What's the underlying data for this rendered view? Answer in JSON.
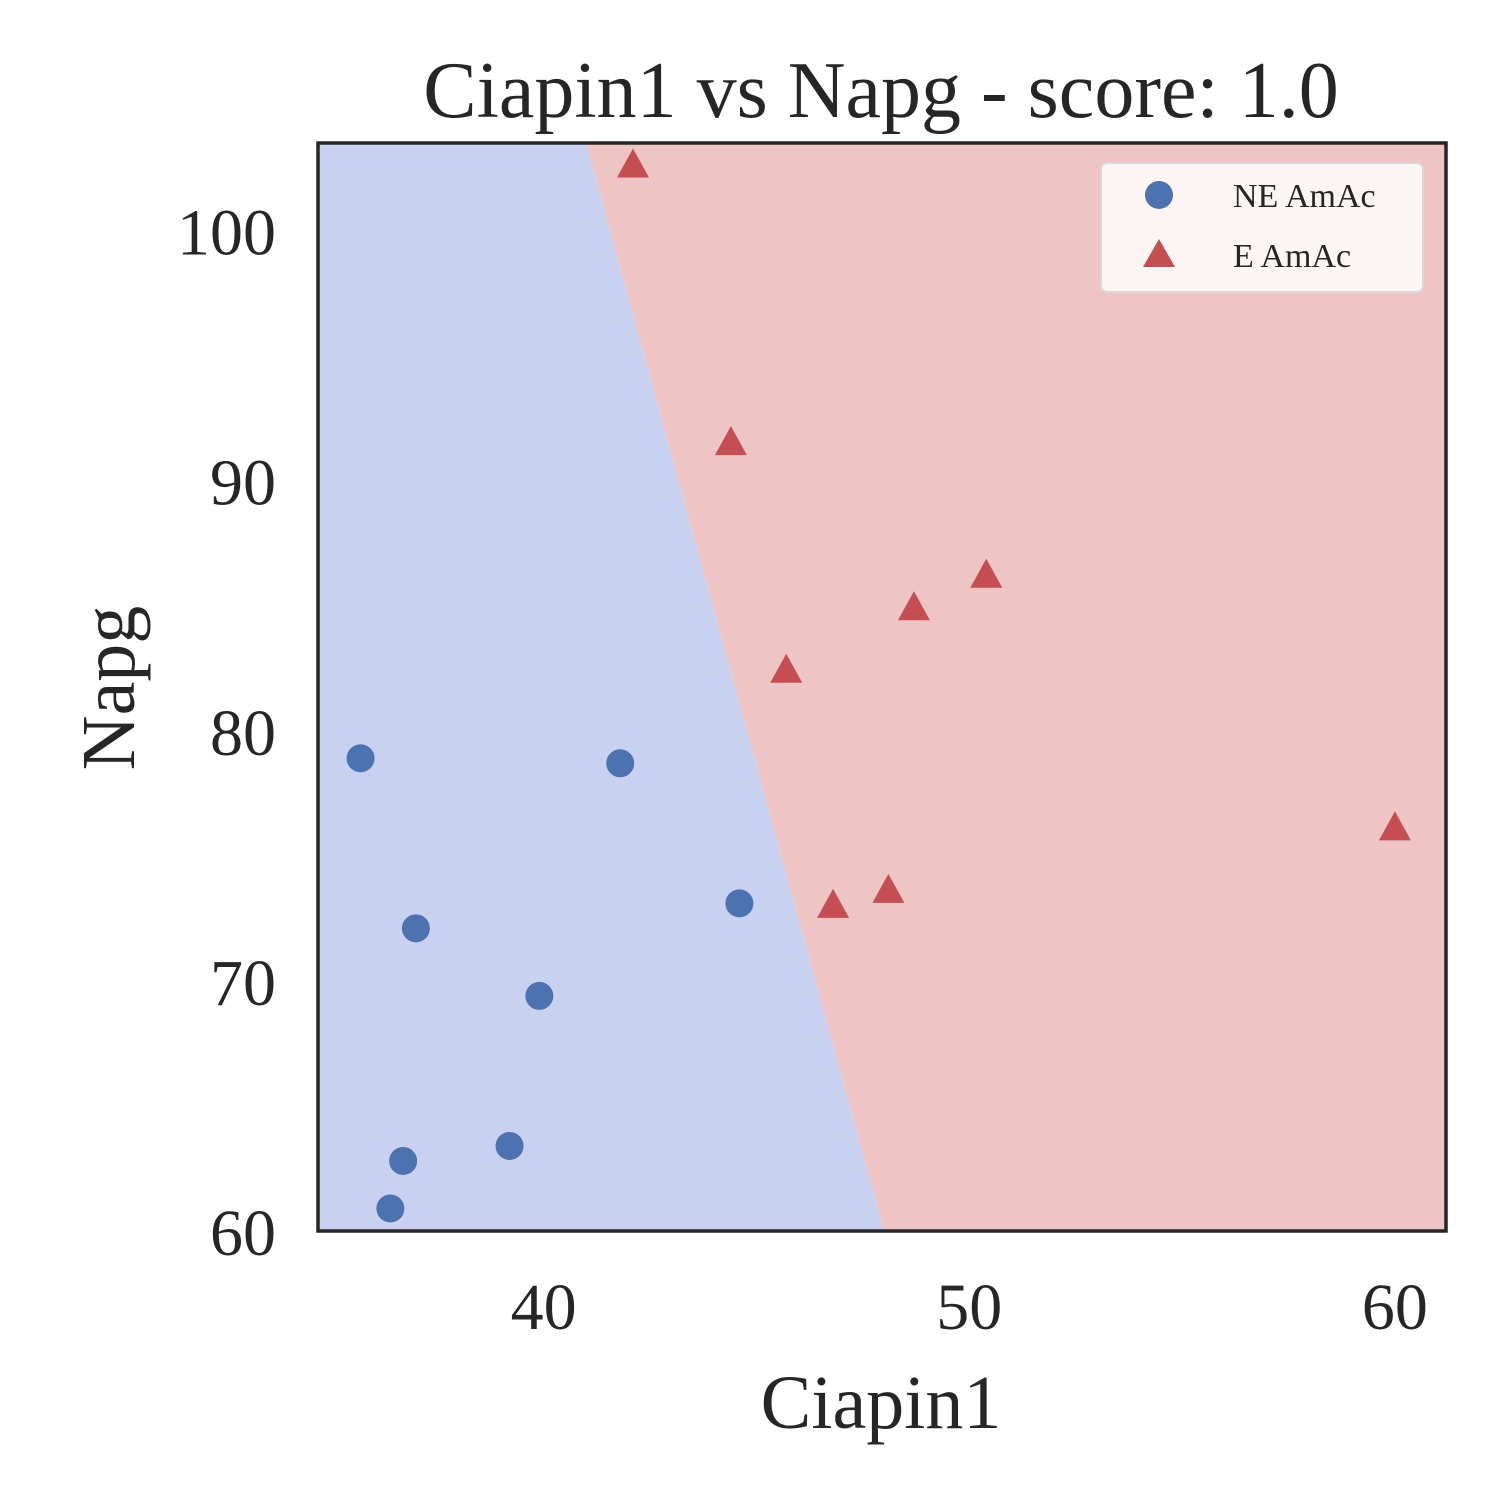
{
  "chart_data": {
    "type": "scatter",
    "title": "Ciapin1 vs Napg - score: 1.0",
    "xlabel": "Ciapin1",
    "ylabel": "Napg",
    "xlim": [
      34.7,
      61.2
    ],
    "ylim": [
      60,
      103.5
    ],
    "xticks": [
      40,
      50,
      60
    ],
    "yticks": [
      60,
      70,
      80,
      90,
      100
    ],
    "grid": false,
    "legend_position": "top-right",
    "decision_boundary": {
      "points": [
        [
          41.0,
          103.5
        ],
        [
          48.0,
          60.0
        ]
      ],
      "left_region_color": "#c9d1f1",
      "right_region_color": "#efc4c4"
    },
    "series": [
      {
        "name": "NE AmAc",
        "marker": "circle",
        "color": "#4c72b0",
        "points": [
          [
            35.7,
            78.9
          ],
          [
            37.0,
            72.1
          ],
          [
            36.7,
            62.8
          ],
          [
            36.4,
            60.9
          ],
          [
            39.9,
            69.4
          ],
          [
            39.2,
            63.4
          ],
          [
            41.8,
            78.7
          ],
          [
            44.6,
            73.1
          ]
        ]
      },
      {
        "name": "E AmAc",
        "marker": "triangle",
        "color": "#c44e52",
        "points": [
          [
            42.1,
            102.6
          ],
          [
            44.4,
            91.5
          ],
          [
            45.7,
            82.4
          ],
          [
            48.7,
            84.9
          ],
          [
            50.4,
            86.2
          ],
          [
            46.8,
            73.0
          ],
          [
            48.1,
            73.6
          ],
          [
            60.0,
            76.1
          ]
        ]
      }
    ]
  }
}
